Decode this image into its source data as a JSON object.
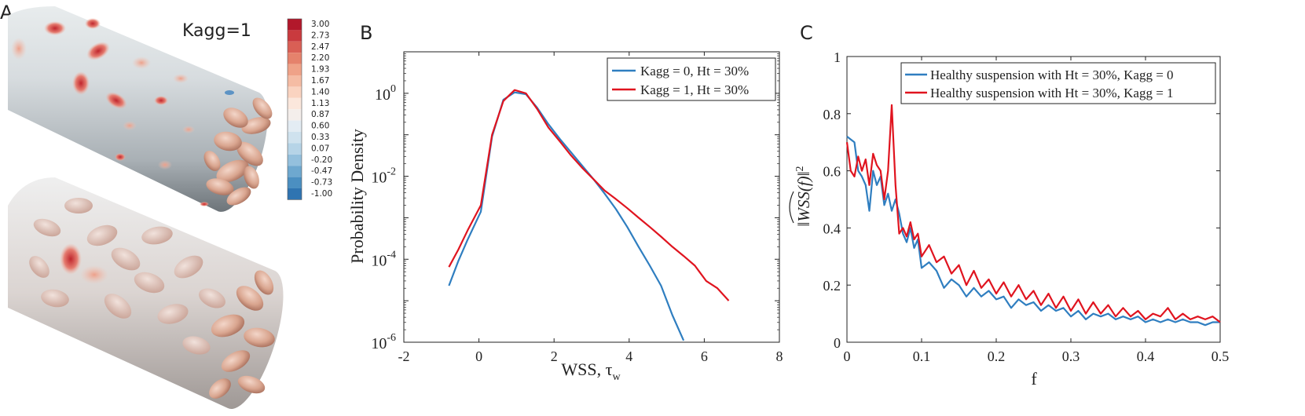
{
  "panel_labels": {
    "a": "A",
    "b": "B",
    "c": "C"
  },
  "panel_a": {
    "kagg_label": "Kagg=1",
    "colorbar": {
      "ticks": [
        "3.00",
        "2.73",
        "2.47",
        "2.20",
        "1.93",
        "1.67",
        "1.40",
        "1.13",
        "0.87",
        "0.60",
        "0.33",
        "0.07",
        "-0.20",
        "-0.47",
        "-0.73",
        "-1.00"
      ],
      "colors": [
        "#b2182b",
        "#c93a3e",
        "#d95f55",
        "#e5826c",
        "#efa288",
        "#f5bca4",
        "#fad3c0",
        "#fbe7dc",
        "#f4eeeb",
        "#e3ecf3",
        "#cfe2ee",
        "#b6d4e7",
        "#94c0dd",
        "#6ea8cf",
        "#4b8fc1",
        "#2f74b1"
      ]
    }
  },
  "chart_data": [
    {
      "panel": "B",
      "type": "line",
      "xlabel": "WSS, τ",
      "xlabel_sub": "w",
      "ylabel": "Probability Density",
      "xlim": [
        -2,
        8
      ],
      "ylim": [
        1e-06,
        10
      ],
      "yscale": "log",
      "xticks": [
        "-2",
        "0",
        "2",
        "4",
        "6",
        "8"
      ],
      "yticks": [
        {
          "value": 1e-06,
          "base": "10",
          "exp": "-6"
        },
        {
          "value": 0.0001,
          "base": "10",
          "exp": "-4"
        },
        {
          "value": 0.01,
          "base": "10",
          "exp": "-2"
        },
        {
          "value": 1,
          "base": "10",
          "exp": "0"
        }
      ],
      "legend_position": "top-right",
      "series": [
        {
          "name": "Kagg = 0, Ht = 30%",
          "color": "#2f7ec0",
          "x": [
            -0.8,
            -0.55,
            -0.3,
            0.05,
            0.35,
            0.65,
            0.95,
            1.25,
            1.55,
            1.85,
            2.15,
            2.45,
            2.75,
            3.05,
            3.35,
            3.65,
            3.95,
            4.25,
            4.55,
            4.85,
            5.15,
            5.45
          ],
          "y": [
            2.3e-05,
            9e-05,
            0.0003,
            0.0014,
            0.09,
            0.7,
            1.05,
            0.95,
            0.45,
            0.18,
            0.08,
            0.038,
            0.018,
            0.0085,
            0.0038,
            0.0016,
            0.0006,
            0.0002,
            7e-05,
            2.3e-05,
            4.5e-06,
            1.1e-06
          ]
        },
        {
          "name": "Kagg = 1, Ht = 30%",
          "color": "#e0141f",
          "x": [
            -0.8,
            -0.55,
            -0.3,
            0.05,
            0.35,
            0.65,
            0.95,
            1.25,
            1.55,
            1.85,
            2.15,
            2.45,
            2.75,
            3.05,
            3.35,
            3.65,
            3.95,
            4.25,
            4.55,
            4.85,
            5.15,
            5.45,
            5.75,
            6.05,
            6.35,
            6.65
          ],
          "y": [
            6.5e-05,
            0.00017,
            0.0005,
            0.002,
            0.1,
            0.65,
            1.2,
            1.0,
            0.42,
            0.15,
            0.07,
            0.032,
            0.016,
            0.0085,
            0.0045,
            0.0028,
            0.0017,
            0.001,
            0.0006,
            0.00035,
            0.0002,
            0.00012,
            7e-05,
            3e-05,
            2e-05,
            1e-05
          ]
        }
      ]
    },
    {
      "panel": "C",
      "type": "line",
      "xlabel": "f",
      "ylabel": "‖WSS(f)‖²",
      "ylabel_hat": "WSS",
      "ylabel_arg": "(f)",
      "xlim": [
        0,
        0.5
      ],
      "ylim": [
        0,
        1
      ],
      "xticks": [
        "0",
        "0.1",
        "0.2",
        "0.3",
        "0.4",
        "0.5"
      ],
      "yticks": [
        "0",
        "0.2",
        "0.4",
        "0.6",
        "0.8",
        "1"
      ],
      "legend_position": "top-right",
      "series": [
        {
          "name": "Healthy suspension with Ht = 30%, Kagg = 0",
          "color": "#2f7ec0",
          "x": [
            0,
            0.005,
            0.01,
            0.015,
            0.02,
            0.025,
            0.03,
            0.035,
            0.04,
            0.045,
            0.05,
            0.055,
            0.06,
            0.065,
            0.07,
            0.075,
            0.08,
            0.085,
            0.09,
            0.095,
            0.1,
            0.11,
            0.12,
            0.13,
            0.14,
            0.15,
            0.16,
            0.17,
            0.18,
            0.19,
            0.2,
            0.21,
            0.22,
            0.23,
            0.24,
            0.25,
            0.26,
            0.27,
            0.28,
            0.29,
            0.3,
            0.31,
            0.32,
            0.33,
            0.34,
            0.35,
            0.36,
            0.37,
            0.38,
            0.39,
            0.4,
            0.41,
            0.42,
            0.43,
            0.44,
            0.45,
            0.46,
            0.47,
            0.48,
            0.49,
            0.5
          ],
          "y": [
            0.72,
            0.71,
            0.7,
            0.6,
            0.58,
            0.55,
            0.46,
            0.6,
            0.55,
            0.58,
            0.48,
            0.52,
            0.46,
            0.5,
            0.45,
            0.38,
            0.35,
            0.4,
            0.33,
            0.36,
            0.26,
            0.28,
            0.25,
            0.19,
            0.22,
            0.2,
            0.16,
            0.19,
            0.16,
            0.18,
            0.15,
            0.16,
            0.12,
            0.15,
            0.13,
            0.14,
            0.11,
            0.13,
            0.11,
            0.12,
            0.09,
            0.11,
            0.08,
            0.1,
            0.09,
            0.1,
            0.08,
            0.09,
            0.08,
            0.09,
            0.07,
            0.08,
            0.07,
            0.08,
            0.07,
            0.08,
            0.07,
            0.07,
            0.06,
            0.07,
            0.07
          ]
        },
        {
          "name": "Healthy suspension with Ht = 30%, Kagg = 1",
          "color": "#e0141f",
          "x": [
            0,
            0.005,
            0.01,
            0.015,
            0.02,
            0.025,
            0.03,
            0.035,
            0.04,
            0.045,
            0.05,
            0.055,
            0.06,
            0.065,
            0.07,
            0.075,
            0.08,
            0.085,
            0.09,
            0.095,
            0.1,
            0.11,
            0.12,
            0.13,
            0.14,
            0.15,
            0.16,
            0.17,
            0.18,
            0.19,
            0.2,
            0.21,
            0.22,
            0.23,
            0.24,
            0.25,
            0.26,
            0.27,
            0.28,
            0.29,
            0.3,
            0.31,
            0.32,
            0.33,
            0.34,
            0.35,
            0.36,
            0.37,
            0.38,
            0.39,
            0.4,
            0.41,
            0.42,
            0.43,
            0.44,
            0.45,
            0.46,
            0.47,
            0.48,
            0.49,
            0.5
          ],
          "y": [
            0.7,
            0.6,
            0.58,
            0.65,
            0.6,
            0.64,
            0.55,
            0.66,
            0.62,
            0.6,
            0.5,
            0.6,
            0.83,
            0.55,
            0.38,
            0.4,
            0.37,
            0.42,
            0.36,
            0.38,
            0.3,
            0.34,
            0.28,
            0.3,
            0.24,
            0.27,
            0.2,
            0.25,
            0.19,
            0.22,
            0.17,
            0.21,
            0.16,
            0.2,
            0.15,
            0.18,
            0.13,
            0.17,
            0.12,
            0.16,
            0.11,
            0.15,
            0.1,
            0.14,
            0.1,
            0.13,
            0.09,
            0.12,
            0.09,
            0.11,
            0.08,
            0.1,
            0.09,
            0.12,
            0.08,
            0.1,
            0.08,
            0.09,
            0.08,
            0.09,
            0.07
          ]
        }
      ]
    }
  ]
}
